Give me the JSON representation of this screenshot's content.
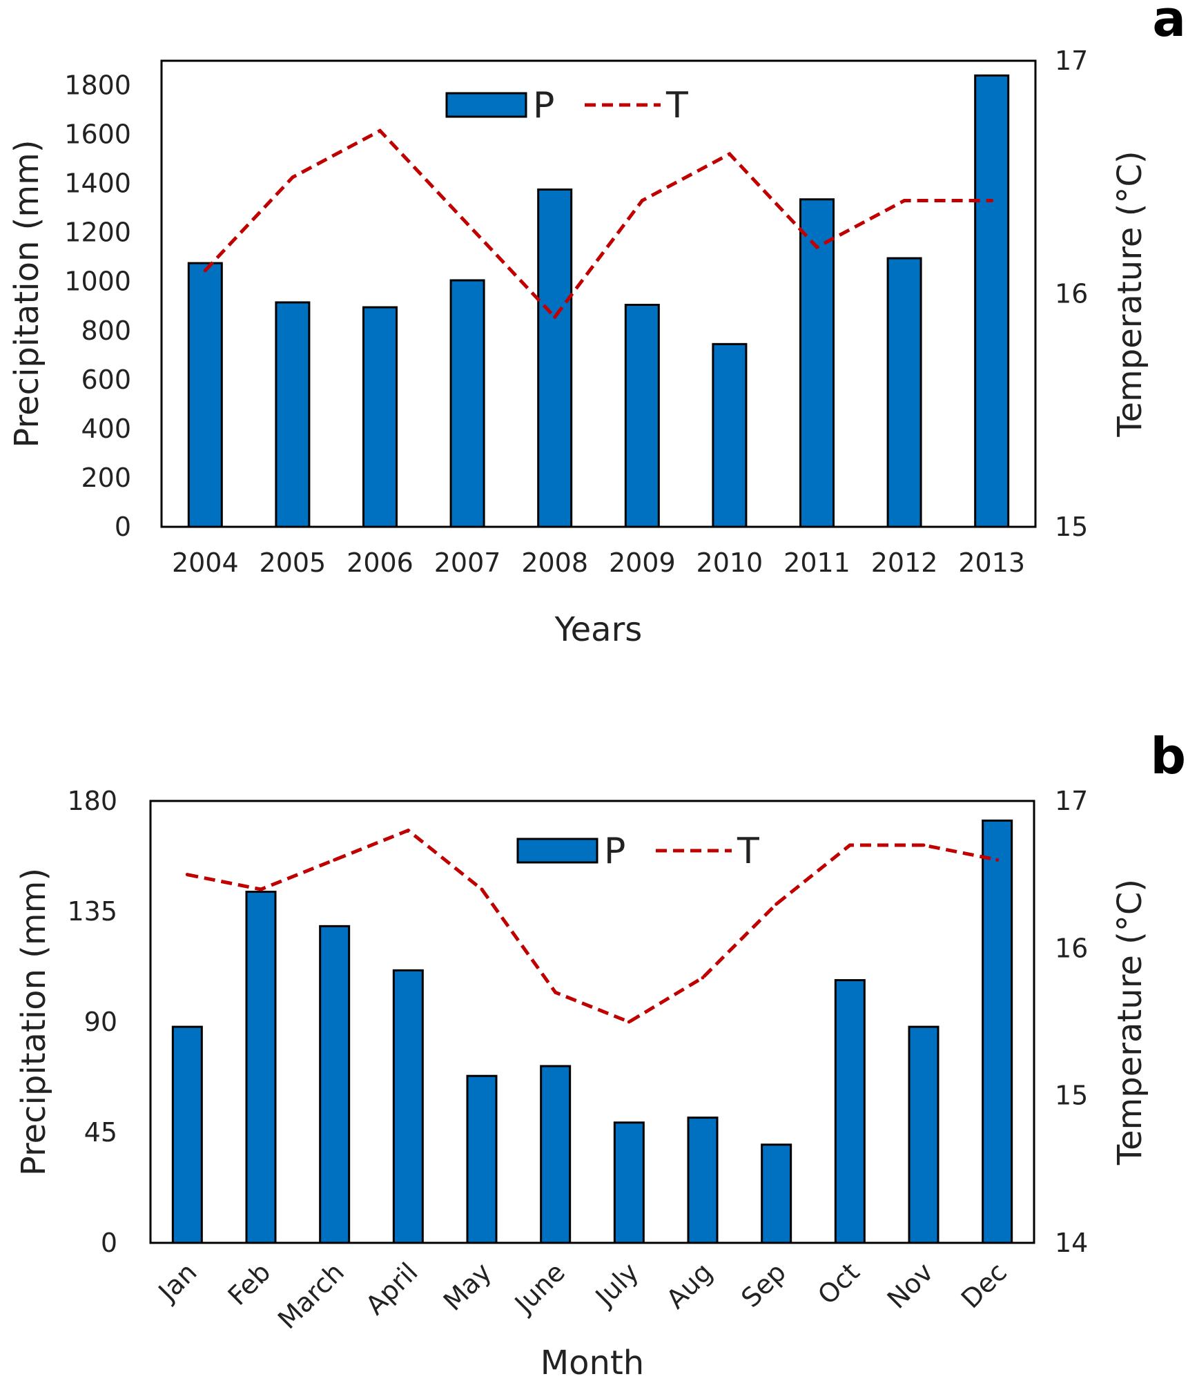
{
  "colors": {
    "bar_fill": "#0070C0",
    "bar_stroke": "#000000",
    "line": "#C00000",
    "frame": "#000000"
  },
  "chart_data": [
    {
      "panel_label": "a",
      "type": "bar",
      "xlabel": "Years",
      "ylabel": "Precipitation (mm)",
      "y2label": "Temperature (°C)",
      "categories": [
        "2004",
        "2005",
        "2006",
        "2007",
        "2008",
        "2009",
        "2010",
        "2011",
        "2012",
        "2013"
      ],
      "ylim": [
        0,
        1900
      ],
      "yticks": [
        0,
        200,
        400,
        600,
        800,
        1000,
        1200,
        1400,
        1600,
        1800
      ],
      "y2lim": [
        15,
        17
      ],
      "y2ticks": [
        15,
        16,
        17
      ],
      "legend": "top-center",
      "grid": false,
      "series": [
        {
          "name": "P",
          "type": "bar",
          "axis": "left",
          "values": [
            1075,
            915,
            895,
            1005,
            1375,
            905,
            745,
            1335,
            1095,
            1840
          ]
        },
        {
          "name": "T",
          "type": "line",
          "style": "dashed",
          "axis": "right",
          "values": [
            16.1,
            16.5,
            16.7,
            16.3,
            15.9,
            16.4,
            16.6,
            16.2,
            16.4,
            16.4
          ]
        }
      ]
    },
    {
      "panel_label": "b",
      "type": "bar",
      "xlabel": "Month",
      "ylabel": "Precipitation (mm)",
      "y2label": "Temperature (°C)",
      "categories": [
        "Jan",
        "Feb",
        "March",
        "April",
        "May",
        "June",
        "July",
        "Aug",
        "Sep",
        "Oct",
        "Nov",
        "Dec"
      ],
      "ylim": [
        0,
        180
      ],
      "yticks": [
        0,
        45,
        90,
        135,
        180
      ],
      "y2lim": [
        14,
        17
      ],
      "y2ticks": [
        14,
        15,
        16,
        17
      ],
      "legend": "top-center",
      "grid": false,
      "series": [
        {
          "name": "P",
          "type": "bar",
          "axis": "left",
          "values": [
            88,
            143,
            129,
            111,
            68,
            72,
            49,
            51,
            40,
            107,
            88,
            172
          ]
        },
        {
          "name": "T",
          "type": "line",
          "style": "dashed",
          "axis": "right",
          "values": [
            16.5,
            16.4,
            16.6,
            16.8,
            16.4,
            15.7,
            15.5,
            15.8,
            16.3,
            16.7,
            16.7,
            16.6
          ]
        }
      ]
    }
  ]
}
